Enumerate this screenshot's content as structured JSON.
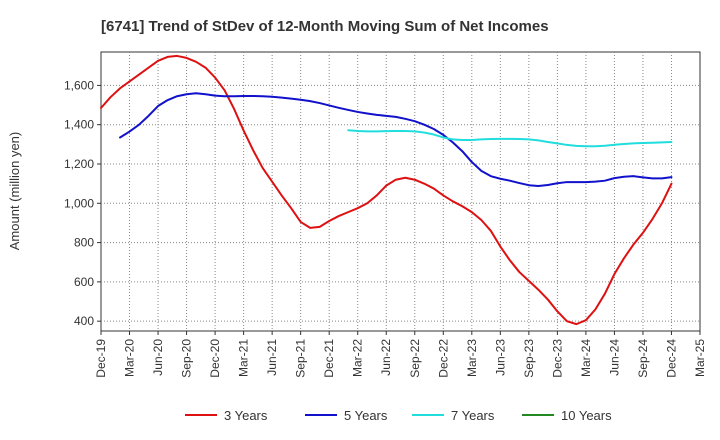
{
  "chart_data": {
    "type": "line",
    "title": "[6741]  Trend of StDev of 12-Month Moving Sum of Net Incomes",
    "xlabel": "",
    "ylabel": "Amount (million yen)",
    "ylim": [
      350,
      1770
    ],
    "y_ticks": [
      400,
      600,
      800,
      1000,
      1200,
      1400,
      1600
    ],
    "y_tick_labels": [
      "400",
      "600",
      "800",
      "1,000",
      "1,200",
      "1,400",
      "1,600"
    ],
    "x_ticks": [
      "Dec-19",
      "Mar-20",
      "Jun-20",
      "Sep-20",
      "Dec-20",
      "Mar-21",
      "Jun-21",
      "Sep-21",
      "Dec-21",
      "Mar-22",
      "Jun-22",
      "Sep-22",
      "Dec-22",
      "Mar-23",
      "Jun-23",
      "Sep-23",
      "Dec-23",
      "Mar-24",
      "Jun-24",
      "Sep-24",
      "Dec-24",
      "Mar-25"
    ],
    "grid": true,
    "legend_position": "bottom",
    "series": [
      {
        "name": "3 Years",
        "color": "#dd1111",
        "points": [
          [
            "Dec-19",
            1485
          ],
          [
            "Jan-20",
            1540
          ],
          [
            "Feb-20",
            1585
          ],
          [
            "Mar-20",
            1620
          ],
          [
            "Apr-20",
            1655
          ],
          [
            "May-20",
            1690
          ],
          [
            "Jun-20",
            1725
          ],
          [
            "Jul-20",
            1745
          ],
          [
            "Aug-20",
            1750
          ],
          [
            "Sep-20",
            1740
          ],
          [
            "Oct-20",
            1720
          ],
          [
            "Nov-20",
            1690
          ],
          [
            "Dec-20",
            1640
          ],
          [
            "Jan-21",
            1575
          ],
          [
            "Feb-21",
            1480
          ],
          [
            "Mar-21",
            1370
          ],
          [
            "Apr-21",
            1270
          ],
          [
            "May-21",
            1180
          ],
          [
            "Jun-21",
            1110
          ],
          [
            "Jul-21",
            1040
          ],
          [
            "Aug-21",
            975
          ],
          [
            "Sep-21",
            905
          ],
          [
            "Oct-21",
            875
          ],
          [
            "Nov-21",
            880
          ],
          [
            "Dec-21",
            910
          ],
          [
            "Jan-22",
            935
          ],
          [
            "Feb-22",
            955
          ],
          [
            "Mar-22",
            975
          ],
          [
            "Apr-22",
            1000
          ],
          [
            "May-22",
            1040
          ],
          [
            "Jun-22",
            1090
          ],
          [
            "Jul-22",
            1120
          ],
          [
            "Aug-22",
            1130
          ],
          [
            "Sep-22",
            1120
          ],
          [
            "Oct-22",
            1100
          ],
          [
            "Nov-22",
            1075
          ],
          [
            "Dec-22",
            1040
          ],
          [
            "Jan-23",
            1010
          ],
          [
            "Feb-23",
            985
          ],
          [
            "Mar-23",
            955
          ],
          [
            "Apr-23",
            915
          ],
          [
            "May-23",
            860
          ],
          [
            "Jun-23",
            780
          ],
          [
            "Jul-23",
            710
          ],
          [
            "Aug-23",
            650
          ],
          [
            "Sep-23",
            605
          ],
          [
            "Oct-23",
            560
          ],
          [
            "Nov-23",
            510
          ],
          [
            "Dec-23",
            450
          ],
          [
            "Jan-24",
            400
          ],
          [
            "Feb-24",
            385
          ],
          [
            "Mar-24",
            405
          ],
          [
            "Apr-24",
            460
          ],
          [
            "May-24",
            540
          ],
          [
            "Jun-24",
            640
          ],
          [
            "Jul-24",
            720
          ],
          [
            "Aug-24",
            790
          ],
          [
            "Sep-24",
            850
          ],
          [
            "Oct-24",
            920
          ],
          [
            "Nov-24",
            1000
          ],
          [
            "Dec-24",
            1100
          ]
        ]
      },
      {
        "name": "5 Years",
        "color": "#1111cc",
        "points": [
          [
            "Feb-20",
            1335
          ],
          [
            "Mar-20",
            1365
          ],
          [
            "Apr-20",
            1400
          ],
          [
            "May-20",
            1445
          ],
          [
            "Jun-20",
            1495
          ],
          [
            "Jul-20",
            1525
          ],
          [
            "Aug-20",
            1545
          ],
          [
            "Sep-20",
            1555
          ],
          [
            "Oct-20",
            1560
          ],
          [
            "Nov-20",
            1555
          ],
          [
            "Dec-20",
            1548
          ],
          [
            "Jan-21",
            1545
          ],
          [
            "Feb-21",
            1545
          ],
          [
            "Mar-21",
            1546
          ],
          [
            "Apr-21",
            1546
          ],
          [
            "May-21",
            1545
          ],
          [
            "Jun-21",
            1542
          ],
          [
            "Jul-21",
            1538
          ],
          [
            "Aug-21",
            1533
          ],
          [
            "Sep-21",
            1527
          ],
          [
            "Oct-21",
            1520
          ],
          [
            "Nov-21",
            1510
          ],
          [
            "Dec-21",
            1498
          ],
          [
            "Jan-22",
            1486
          ],
          [
            "Feb-22",
            1475
          ],
          [
            "Mar-22",
            1465
          ],
          [
            "Apr-22",
            1457
          ],
          [
            "May-22",
            1450
          ],
          [
            "Jun-22",
            1445
          ],
          [
            "Jul-22",
            1440
          ],
          [
            "Aug-22",
            1430
          ],
          [
            "Sep-22",
            1418
          ],
          [
            "Oct-22",
            1400
          ],
          [
            "Nov-22",
            1378
          ],
          [
            "Dec-22",
            1348
          ],
          [
            "Jan-23",
            1310
          ],
          [
            "Feb-23",
            1265
          ],
          [
            "Mar-23",
            1210
          ],
          [
            "Apr-23",
            1165
          ],
          [
            "May-23",
            1138
          ],
          [
            "Jun-23",
            1125
          ],
          [
            "Jul-23",
            1115
          ],
          [
            "Aug-23",
            1103
          ],
          [
            "Sep-23",
            1092
          ],
          [
            "Oct-23",
            1088
          ],
          [
            "Nov-23",
            1093
          ],
          [
            "Dec-23",
            1102
          ],
          [
            "Jan-24",
            1108
          ],
          [
            "Feb-24",
            1108
          ],
          [
            "Mar-24",
            1108
          ],
          [
            "Apr-24",
            1110
          ],
          [
            "May-24",
            1115
          ],
          [
            "Jun-24",
            1128
          ],
          [
            "Jul-24",
            1135
          ],
          [
            "Aug-24",
            1138
          ],
          [
            "Sep-24",
            1132
          ],
          [
            "Oct-24",
            1127
          ],
          [
            "Nov-24",
            1127
          ],
          [
            "Dec-24",
            1133
          ]
        ]
      },
      {
        "name": "7 Years",
        "color": "#22dddd",
        "points": [
          [
            "Feb-22",
            1372
          ],
          [
            "Mar-22",
            1368
          ],
          [
            "Apr-22",
            1366
          ],
          [
            "May-22",
            1366
          ],
          [
            "Jun-22",
            1367
          ],
          [
            "Jul-22",
            1368
          ],
          [
            "Aug-22",
            1368
          ],
          [
            "Sep-22",
            1366
          ],
          [
            "Oct-22",
            1360
          ],
          [
            "Nov-22",
            1350
          ],
          [
            "Dec-22",
            1335
          ],
          [
            "Jan-23",
            1325
          ],
          [
            "Feb-23",
            1322
          ],
          [
            "Mar-23",
            1322
          ],
          [
            "Apr-23",
            1325
          ],
          [
            "May-23",
            1327
          ],
          [
            "Jun-23",
            1328
          ],
          [
            "Jul-23",
            1328
          ],
          [
            "Aug-23",
            1327
          ],
          [
            "Sep-23",
            1325
          ],
          [
            "Oct-23",
            1320
          ],
          [
            "Nov-23",
            1312
          ],
          [
            "Dec-23",
            1305
          ],
          [
            "Jan-24",
            1297
          ],
          [
            "Feb-24",
            1292
          ],
          [
            "Mar-24",
            1290
          ],
          [
            "Apr-24",
            1290
          ],
          [
            "May-24",
            1293
          ],
          [
            "Jun-24",
            1298
          ],
          [
            "Jul-24",
            1302
          ],
          [
            "Aug-24",
            1305
          ],
          [
            "Sep-24",
            1307
          ],
          [
            "Oct-24",
            1308
          ],
          [
            "Nov-24",
            1310
          ],
          [
            "Dec-24",
            1312
          ]
        ]
      },
      {
        "name": "10 Years",
        "color": "#228822",
        "points": []
      }
    ]
  }
}
